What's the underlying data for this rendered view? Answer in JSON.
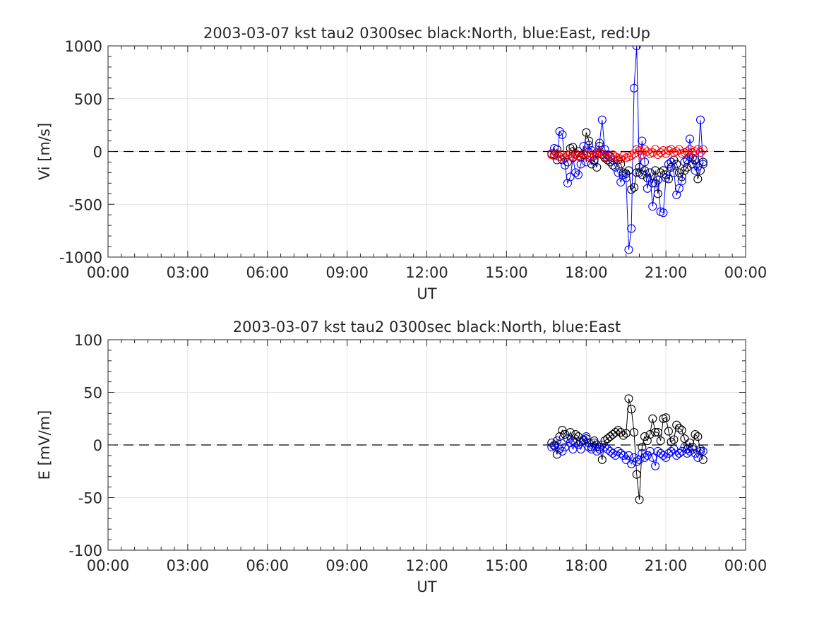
{
  "chart_data": [
    {
      "type": "scatter",
      "title": "2003-03-07 kst tau2 0300sec black:North, blue:East, red:Up",
      "xlabel": "UT",
      "ylabel": "Vi [m/s]",
      "xlim": [
        0,
        24
      ],
      "ylim": [
        -1000,
        1000
      ],
      "x_ticks": [
        "00:00",
        "03:00",
        "06:00",
        "09:00",
        "12:00",
        "15:00",
        "18:00",
        "21:00",
        "00:00"
      ],
      "y_ticks": [
        "1000",
        "500",
        "0",
        "-500",
        "-1000"
      ],
      "y_tick_values": [
        1000,
        500,
        0,
        -500,
        -1000
      ],
      "grid": true,
      "zero_line": "dashed",
      "series": [
        {
          "name": "North",
          "color": "#000000",
          "x": [
            16.7,
            16.8,
            16.9,
            17.0,
            17.1,
            17.2,
            17.3,
            17.4,
            17.5,
            17.6,
            17.7,
            17.8,
            17.9,
            18.0,
            18.1,
            18.2,
            18.3,
            18.4,
            18.5,
            18.6,
            18.7,
            18.8,
            18.9,
            19.0,
            19.1,
            19.2,
            19.3,
            19.4,
            19.5,
            19.6,
            19.7,
            19.8,
            19.9,
            20.0,
            20.1,
            20.2,
            20.3,
            20.4,
            20.5,
            20.6,
            20.7,
            20.8,
            20.9,
            21.0,
            21.1,
            21.2,
            21.3,
            21.4,
            21.5,
            21.6,
            21.7,
            21.8,
            21.9,
            22.0,
            22.1,
            22.2,
            22.3,
            22.4
          ],
          "y": [
            -20,
            -30,
            20,
            -50,
            -80,
            -60,
            -100,
            30,
            40,
            -20,
            0,
            -50,
            -30,
            180,
            100,
            -120,
            -80,
            -150,
            50,
            -30,
            -60,
            -80,
            -100,
            -130,
            -50,
            -80,
            -120,
            -200,
            -210,
            -180,
            -360,
            -340,
            -200,
            -150,
            -220,
            -180,
            -250,
            -200,
            -300,
            -180,
            -400,
            -200,
            -180,
            -220,
            -260,
            -150,
            -80,
            -120,
            -200,
            -240,
            -180,
            -150,
            -50,
            -120,
            -80,
            -260,
            -180,
            -100
          ]
        },
        {
          "name": "East",
          "color": "#0000ff",
          "x": [
            16.7,
            16.8,
            16.9,
            17.0,
            17.1,
            17.2,
            17.3,
            17.4,
            17.5,
            17.6,
            17.7,
            17.8,
            17.9,
            18.0,
            18.1,
            18.2,
            18.3,
            18.4,
            18.5,
            18.6,
            18.7,
            18.8,
            18.9,
            19.0,
            19.1,
            19.2,
            19.3,
            19.4,
            19.5,
            19.6,
            19.7,
            19.8,
            19.9,
            20.0,
            20.1,
            20.2,
            20.3,
            20.4,
            20.5,
            20.6,
            20.7,
            20.8,
            20.9,
            21.0,
            21.1,
            21.2,
            21.3,
            21.4,
            21.5,
            21.6,
            21.7,
            21.8,
            21.9,
            22.0,
            22.1,
            22.2,
            22.3,
            22.4
          ],
          "y": [
            -20,
            30,
            -80,
            190,
            160,
            -130,
            -300,
            -240,
            -60,
            -200,
            -220,
            -120,
            50,
            -100,
            60,
            10,
            -90,
            -10,
            80,
            300,
            20,
            -30,
            -50,
            -80,
            -150,
            -200,
            -290,
            -220,
            -250,
            -930,
            -730,
            600,
            1000,
            -200,
            100,
            -100,
            -350,
            -200,
            -520,
            -300,
            -270,
            -570,
            -580,
            -250,
            -120,
            -100,
            -200,
            -410,
            -350,
            -280,
            -100,
            -80,
            120,
            -60,
            -180,
            -140,
            300,
            -120
          ]
        },
        {
          "name": "Up",
          "color": "#ff0000",
          "x": [
            16.7,
            16.8,
            16.9,
            17.0,
            17.1,
            17.2,
            17.3,
            17.4,
            17.5,
            17.6,
            17.7,
            17.8,
            17.9,
            18.0,
            18.1,
            18.2,
            18.3,
            18.4,
            18.5,
            18.6,
            18.7,
            18.8,
            18.9,
            19.0,
            19.1,
            19.2,
            19.3,
            19.4,
            19.5,
            19.6,
            19.7,
            19.8,
            19.9,
            20.0,
            20.1,
            20.2,
            20.3,
            20.4,
            20.5,
            20.6,
            20.7,
            20.8,
            20.9,
            21.0,
            21.1,
            21.2,
            21.3,
            21.4,
            21.5,
            21.6,
            21.7,
            21.8,
            21.9,
            22.0,
            22.1,
            22.2,
            22.3,
            22.4
          ],
          "y": [
            -30,
            -40,
            -20,
            -50,
            -30,
            -60,
            -40,
            -20,
            -50,
            -30,
            -40,
            -60,
            -20,
            -30,
            -50,
            -20,
            -40,
            -30,
            -10,
            -20,
            -50,
            -60,
            -40,
            -30,
            -50,
            -60,
            -70,
            -40,
            -60,
            -50,
            -40,
            -20,
            20,
            10,
            -30,
            20,
            0,
            -20,
            -10,
            20,
            -30,
            -10,
            10,
            -20,
            10,
            20,
            -10,
            0,
            20,
            -20,
            -10,
            0,
            20,
            -10,
            0,
            20,
            -10,
            20
          ]
        }
      ]
    },
    {
      "type": "scatter",
      "title": "2003-03-07 kst tau2 0300sec black:North, blue:East",
      "xlabel": "UT",
      "ylabel": "E [mV/m]",
      "xlim": [
        0,
        24
      ],
      "ylim": [
        -100,
        100
      ],
      "x_ticks": [
        "00:00",
        "03:00",
        "06:00",
        "09:00",
        "12:00",
        "15:00",
        "18:00",
        "21:00",
        "00:00"
      ],
      "y_ticks": [
        "100",
        "50",
        "0",
        "-50",
        "-100"
      ],
      "y_tick_values": [
        100,
        50,
        0,
        -50,
        -100
      ],
      "grid": true,
      "zero_line": "dashed",
      "series": [
        {
          "name": "North",
          "color": "#000000",
          "x": [
            16.7,
            16.8,
            16.9,
            17.0,
            17.1,
            17.2,
            17.3,
            17.4,
            17.5,
            17.6,
            17.7,
            17.8,
            17.9,
            18.0,
            18.1,
            18.2,
            18.3,
            18.4,
            18.5,
            18.6,
            18.7,
            18.8,
            18.9,
            19.0,
            19.1,
            19.2,
            19.3,
            19.4,
            19.5,
            19.6,
            19.7,
            19.8,
            19.9,
            20.0,
            20.1,
            20.2,
            20.3,
            20.4,
            20.5,
            20.6,
            20.7,
            20.8,
            20.9,
            21.0,
            21.1,
            21.2,
            21.3,
            21.4,
            21.5,
            21.6,
            21.7,
            21.8,
            21.9,
            22.0,
            22.1,
            22.2,
            22.3,
            22.4
          ],
          "y": [
            2,
            -1,
            -9,
            8,
            14,
            10,
            6,
            12,
            4,
            10,
            8,
            3,
            5,
            6,
            2,
            -2,
            4,
            0,
            -2,
            -14,
            4,
            6,
            8,
            10,
            12,
            14,
            12,
            9,
            11,
            44,
            34,
            12,
            -28,
            -52,
            -2,
            8,
            4,
            10,
            25,
            12,
            12,
            4,
            25,
            26,
            13,
            3,
            5,
            19,
            16,
            14,
            6,
            -4,
            2,
            -2,
            10,
            8,
            -6,
            -14
          ]
        },
        {
          "name": "East",
          "color": "#0000ff",
          "x": [
            16.7,
            16.8,
            16.9,
            17.0,
            17.1,
            17.2,
            17.3,
            17.4,
            17.5,
            17.6,
            17.7,
            17.8,
            17.9,
            18.0,
            18.1,
            18.2,
            18.3,
            18.4,
            18.5,
            18.6,
            18.7,
            18.8,
            18.9,
            19.0,
            19.1,
            19.2,
            19.3,
            19.4,
            19.5,
            19.6,
            19.7,
            19.8,
            19.9,
            20.0,
            20.1,
            20.2,
            20.3,
            20.4,
            20.5,
            20.6,
            20.7,
            20.8,
            20.9,
            21.0,
            21.1,
            21.2,
            21.3,
            21.4,
            21.5,
            21.6,
            21.7,
            21.8,
            21.9,
            22.0,
            22.1,
            22.2,
            22.3,
            22.4
          ],
          "y": [
            -2,
            0,
            4,
            -4,
            -6,
            -2,
            6,
            2,
            -4,
            2,
            0,
            -4,
            4,
            8,
            -2,
            -4,
            2,
            -6,
            -4,
            0,
            -2,
            -4,
            -6,
            -8,
            -10,
            -6,
            -8,
            -10,
            -14,
            -10,
            -18,
            -12,
            -16,
            -14,
            -8,
            -12,
            -10,
            -6,
            -12,
            -20,
            -6,
            -8,
            -10,
            -12,
            -8,
            -6,
            -4,
            -10,
            -8,
            -6,
            -2,
            -8,
            -6,
            -4,
            -8,
            -12,
            -4,
            -6
          ]
        }
      ]
    }
  ]
}
